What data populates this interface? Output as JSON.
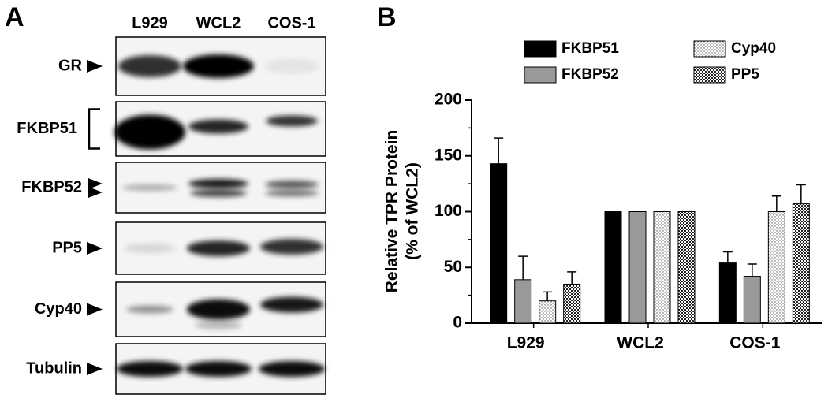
{
  "blot": {
    "panel_label": "A",
    "lanes": [
      "L929",
      "WCL2",
      "COS-1"
    ],
    "rows": [
      "GR",
      "FKBP51",
      "FKBP52",
      "PP5",
      "Cyp40",
      "Tubulin"
    ]
  },
  "chart_data": {
    "type": "bar",
    "panel_label": "B",
    "y_label": [
      "Relative TPR Protein",
      "(% of WCL2)"
    ],
    "categories": [
      "L929",
      "WCL2",
      "COS-1"
    ],
    "series": [
      {
        "name": "FKBP51",
        "color": "#000000",
        "values": [
          143,
          100,
          54
        ],
        "errors": [
          23,
          null,
          10
        ]
      },
      {
        "name": "FKBP52",
        "color": "#999999",
        "values": [
          39,
          100,
          42
        ],
        "errors": [
          21,
          null,
          11
        ]
      },
      {
        "name": "Cyp40",
        "color": "#ffffff",
        "pattern": "dots",
        "values": [
          20,
          100,
          100
        ],
        "errors": [
          8,
          null,
          14
        ]
      },
      {
        "name": "PP5",
        "color": "#ffffff",
        "pattern": "checks",
        "values": [
          35,
          100,
          107
        ],
        "errors": [
          11,
          null,
          17
        ]
      }
    ],
    "ylim": [
      0,
      200
    ],
    "yticks": [
      0,
      50,
      100,
      150,
      200
    ],
    "yminor": [
      25,
      75,
      125,
      175
    ]
  }
}
